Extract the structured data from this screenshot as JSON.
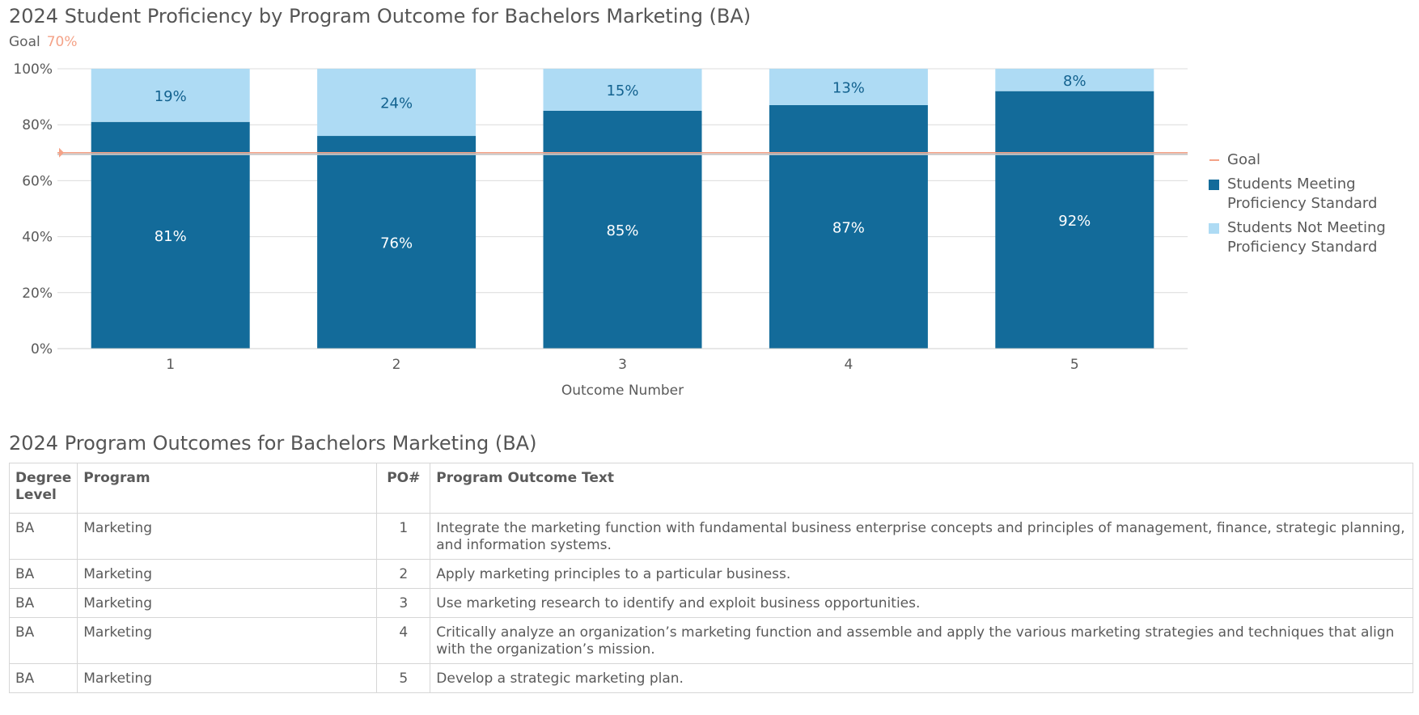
{
  "chart_title": "2024 Student Proficiency by Program Outcome for Bachelors Marketing (BA)",
  "goal": {
    "label": "Goal",
    "value_text": "70%",
    "value": 70,
    "color": "#f4a287"
  },
  "colors": {
    "meeting": "#136b9a",
    "not_meeting": "#aedbf4",
    "label_on_dark": "#ffffff",
    "label_on_light": "#13628f",
    "grid": "#dcdcdc"
  },
  "legend": [
    {
      "type": "line",
      "label": "Goal",
      "color": "#f4a287"
    },
    {
      "type": "swatch",
      "label": "Students Meeting Proficiency Standard",
      "color": "#136b9a"
    },
    {
      "type": "swatch",
      "label": "Students Not Meeting Proficiency Standard",
      "color": "#aedbf4"
    }
  ],
  "chart_data": {
    "type": "bar",
    "stacked": true,
    "categories": [
      "1",
      "2",
      "3",
      "4",
      "5"
    ],
    "series": [
      {
        "name": "Students Meeting Proficiency Standard",
        "values": [
          81,
          76,
          85,
          87,
          92
        ],
        "labels": [
          "81%",
          "76%",
          "85%",
          "87%",
          "92%"
        ]
      },
      {
        "name": "Students Not Meeting Proficiency Standard",
        "values": [
          19,
          24,
          15,
          13,
          8
        ],
        "labels": [
          "19%",
          "24%",
          "15%",
          "13%",
          "8%"
        ]
      }
    ],
    "xlabel": "Outcome Number",
    "ylabel": "",
    "ylim": [
      0,
      100
    ],
    "yticks": [
      "0%",
      "20%",
      "40%",
      "60%",
      "80%",
      "100%"
    ],
    "grid": true,
    "legend_position": "right",
    "reference_line": {
      "name": "Goal",
      "value": 70
    }
  },
  "table": {
    "title": "2024 Program Outcomes for Bachelors Marketing (BA)",
    "headers": [
      "Degree Level",
      "Program",
      "PO#",
      "Program Outcome Text"
    ],
    "rows": [
      [
        "BA",
        "Marketing",
        "1",
        "Integrate the marketing function with fundamental business enterprise concepts and principles of management, finance, strategic planning, and information systems."
      ],
      [
        "BA",
        "Marketing",
        "2",
        "Apply marketing principles to a particular business."
      ],
      [
        "BA",
        "Marketing",
        "3",
        "Use marketing research to identify and exploit business opportunities."
      ],
      [
        "BA",
        "Marketing",
        "4",
        "Critically analyze an organization’s marketing function and assemble and apply the various marketing strategies and techniques that align with the organization’s mission."
      ],
      [
        "BA",
        "Marketing",
        "5",
        "Develop a strategic marketing plan."
      ]
    ]
  }
}
